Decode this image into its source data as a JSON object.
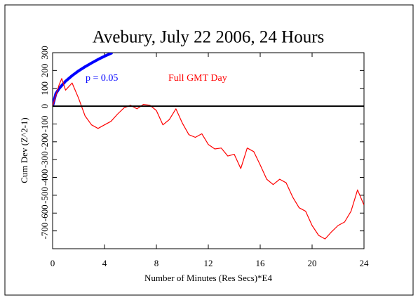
{
  "chart_data": {
    "type": "line",
    "title": "Avebury, July 22 2006, 24 Hours",
    "xlabel": "Number of Minutes (Res Secs)*E4",
    "ylabel": "Cum Dev (Z^2-1)",
    "xlim": [
      0,
      24
    ],
    "xticks": [
      0,
      4,
      8,
      12,
      16,
      20,
      24
    ],
    "ylim": [
      -800,
      300
    ],
    "yticks": [
      300,
      200,
      100,
      0,
      -100,
      -200,
      -300,
      -400,
      -500,
      -600,
      -700
    ],
    "reference_line": 0,
    "series": [
      {
        "name": "p = 0.05",
        "color": "#0000ff",
        "x": [
          0,
          0.25,
          0.5,
          1,
          1.5,
          2,
          2.5,
          3,
          3.5,
          4,
          4.6
        ],
        "values": [
          0,
          70,
          99,
          140,
          171,
          198,
          221,
          242,
          262,
          280,
          300
        ]
      },
      {
        "name": "Full GMT Day",
        "color": "#ff0000",
        "x": [
          0,
          0.5,
          0.7,
          1,
          1.5,
          2,
          2.5,
          3,
          3.5,
          4,
          4.5,
          5,
          5.5,
          6,
          6.5,
          7,
          7.5,
          8,
          8.5,
          9,
          9.5,
          10,
          10.5,
          11,
          11.5,
          12,
          12.5,
          13,
          13.5,
          14,
          14.5,
          15,
          15.5,
          16,
          16.5,
          17,
          17.5,
          18,
          18.5,
          19,
          19.5,
          20,
          20.5,
          21,
          21.5,
          22,
          22.5,
          23,
          23.5,
          24
        ],
        "values": [
          0,
          120,
          155,
          90,
          130,
          45,
          -55,
          -105,
          -125,
          -105,
          -85,
          -45,
          -10,
          5,
          -15,
          10,
          5,
          -25,
          -105,
          -75,
          -15,
          -95,
          -160,
          -175,
          -155,
          -215,
          -240,
          -235,
          -280,
          -270,
          -350,
          -235,
          -255,
          -330,
          -410,
          -440,
          -410,
          -430,
          -510,
          -570,
          -590,
          -670,
          -725,
          -745,
          -705,
          -670,
          -650,
          -590,
          -470,
          -555
        ]
      }
    ]
  }
}
